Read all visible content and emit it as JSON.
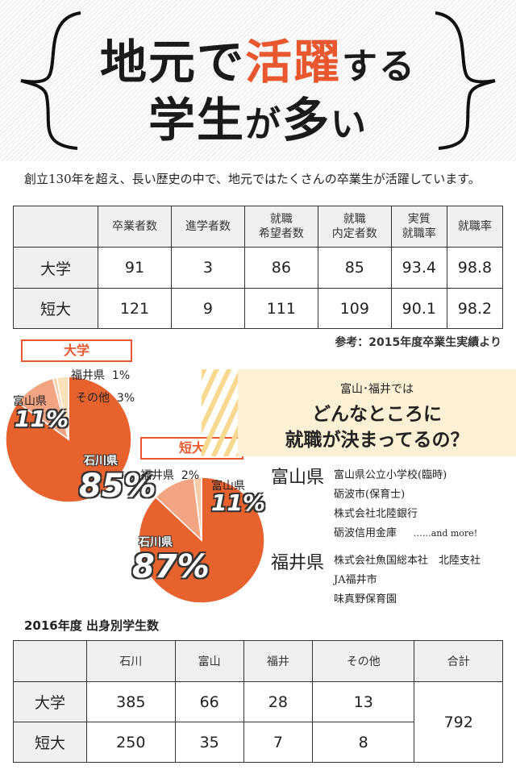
{
  "title": {
    "line1_part1": "地元で",
    "line1_accent": "活躍",
    "line1_part2": "する",
    "line2_part1": "学生",
    "line2_part2": "が",
    "line2_part3": "多",
    "line2_part4": "い"
  },
  "intro": "創立130年を超え、長い歴史の中で、地元ではたくさんの卒業生が活躍しています。",
  "employment_table": {
    "headers": [
      "卒業者数",
      "進学者数",
      "就職\n希望者数",
      "就職\n内定者数",
      "実質\n就職率",
      "就職率"
    ],
    "rows": [
      {
        "label": "大学",
        "values": [
          "91",
          "3",
          "86",
          "85",
          "93.4",
          "98.8"
        ]
      },
      {
        "label": "短大",
        "values": [
          "121",
          "9",
          "111",
          "109",
          "90.1",
          "98.2"
        ]
      }
    ]
  },
  "reference": "参考：2015年度卒業生実績より",
  "pies": [
    {
      "label": "大学",
      "slices": [
        {
          "name": "石川県",
          "value": 85,
          "display": "85%",
          "color": "#e8622e"
        },
        {
          "name": "富山県",
          "value": 11,
          "display": "11%",
          "color": "#f3a483"
        },
        {
          "name": "福井県",
          "value": 1,
          "display": "1%",
          "color": "#f9cda8"
        },
        {
          "name": "その他",
          "value": 3,
          "display": "3%",
          "color": "#fbe2b8"
        }
      ]
    },
    {
      "label": "短大",
      "slices": [
        {
          "name": "石川県",
          "value": 87,
          "display": "87%",
          "color": "#e8622e"
        },
        {
          "name": "富山県",
          "value": 11,
          "display": "11%",
          "color": "#f3a483"
        },
        {
          "name": "福井県",
          "value": 2,
          "display": "2%",
          "color": "#f9cda8"
        }
      ]
    }
  ],
  "callout": {
    "line1": "富山･福井では",
    "line2": "どんなところに",
    "line3": "就職が決まってるの？"
  },
  "employers": {
    "toyama": {
      "label": "富山県",
      "items": [
        "富山県公立小学校(臨時)",
        "砺波市(保育士)",
        "株式会社北陸銀行",
        "砺波信用金庫"
      ],
      "more": "……and more!"
    },
    "fukui": {
      "label": "福井県",
      "items": [
        "株式会社魚国総本社　北陸支社",
        "JA福井市",
        "味真野保育園"
      ]
    }
  },
  "students_section_title": "2016年度 出身別学生数",
  "students_table": {
    "headers": [
      "石川",
      "富山",
      "福井",
      "その他",
      "合計"
    ],
    "rows": [
      {
        "label": "大学",
        "values": [
          "385",
          "66",
          "28",
          "13"
        ]
      },
      {
        "label": "短大",
        "values": [
          "250",
          "35",
          "7",
          "8"
        ]
      }
    ],
    "total": "792"
  }
}
